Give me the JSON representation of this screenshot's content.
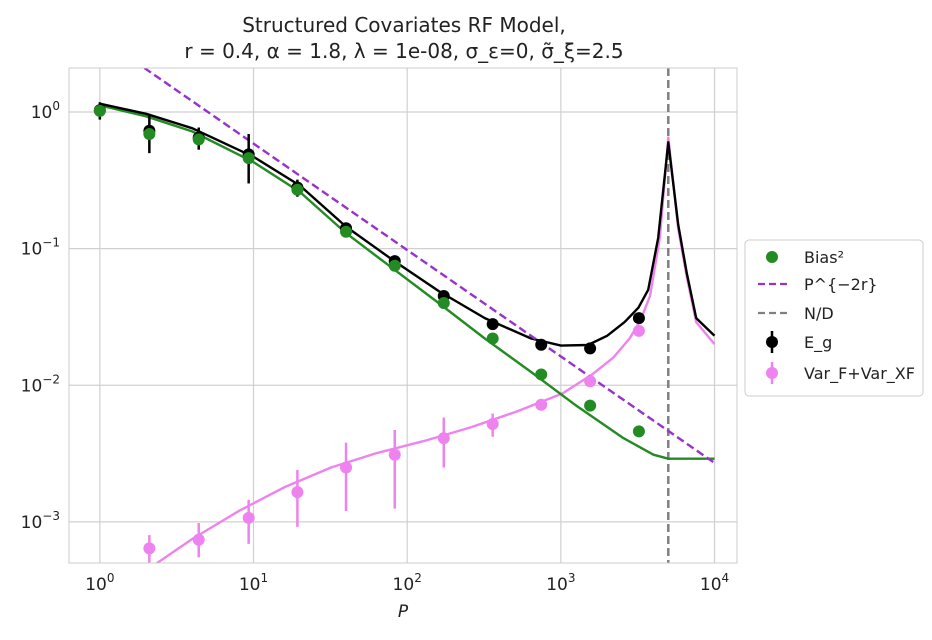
{
  "chart_data": {
    "type": "scatter",
    "title_line1": "Structured Covariates RF Model,",
    "title_line2": "r = 0.4, α = 1.8, λ = 1e-08, σ_ε=0, σ̃_ξ=2.5",
    "xlabel": "P",
    "ylabel": "",
    "xscale": "log",
    "yscale": "log",
    "xlim": [
      0.63,
      14000
    ],
    "ylim": [
      0.0005,
      2.1
    ],
    "x_ticks": [
      {
        "value": 1,
        "base": "10",
        "exp": "0"
      },
      {
        "value": 10,
        "base": "10",
        "exp": "1"
      },
      {
        "value": 100,
        "base": "10",
        "exp": "2"
      },
      {
        "value": 1000,
        "base": "10",
        "exp": "3"
      },
      {
        "value": 10000,
        "base": "10",
        "exp": "4"
      }
    ],
    "y_ticks": [
      {
        "value": 1,
        "base": "10",
        "exp": "0"
      },
      {
        "value": 0.1,
        "base": "10",
        "exp": "−1"
      },
      {
        "value": 0.01,
        "base": "10",
        "exp": "−2"
      },
      {
        "value": 0.001,
        "base": "10",
        "exp": "−3"
      }
    ],
    "grid": true,
    "legend_position": "right-outside",
    "legend": {
      "bias": "Bias²",
      "power": "P^{−2r}",
      "nd": "N/D",
      "eg": "E_g",
      "var": "Var_F+Var_XF"
    },
    "colors": {
      "bias": "#228b22",
      "power": "#9932cc",
      "nd": "#808080",
      "eg": "#000000",
      "var": "#ee82ee",
      "grid": "#d0d0d0",
      "spine": "#cccccc"
    },
    "nd_line_x": 5000,
    "power_law_line": {
      "x": [
        1.95,
        10000
      ],
      "y": [
        2.1,
        0.0027
      ]
    },
    "bias_curve": {
      "x": [
        1,
        2,
        4,
        10,
        20,
        40,
        80,
        160,
        320,
        640,
        1280,
        2560,
        4000,
        5000,
        7000,
        10000
      ],
      "y": [
        1.12,
        0.93,
        0.72,
        0.43,
        0.26,
        0.13,
        0.072,
        0.04,
        0.022,
        0.0125,
        0.007,
        0.0041,
        0.0031,
        0.0029,
        0.0029,
        0.0029
      ]
    },
    "eg_curve": {
      "x": [
        1,
        2,
        4,
        10,
        20,
        40,
        80,
        160,
        320,
        640,
        1000,
        1500,
        2000,
        2600,
        3200,
        3700,
        4300,
        5000,
        5800,
        6600,
        7600,
        10000
      ],
      "y": [
        1.15,
        0.97,
        0.76,
        0.47,
        0.29,
        0.145,
        0.083,
        0.049,
        0.031,
        0.022,
        0.0195,
        0.0197,
        0.023,
        0.029,
        0.037,
        0.05,
        0.12,
        0.6,
        0.15,
        0.066,
        0.031,
        0.023
      ]
    },
    "var_curve": {
      "x": [
        2.3,
        4,
        8,
        16,
        32,
        64,
        128,
        256,
        512,
        1024,
        1600,
        2200,
        2800,
        3300,
        3800,
        4400,
        5000,
        5800,
        6600,
        7600,
        10000
      ],
      "y": [
        0.00049,
        0.00075,
        0.0012,
        0.0018,
        0.0025,
        0.0032,
        0.0039,
        0.0049,
        0.0064,
        0.0087,
        0.012,
        0.016,
        0.022,
        0.03,
        0.045,
        0.12,
        0.65,
        0.14,
        0.062,
        0.029,
        0.02
      ]
    },
    "bias_points": {
      "x": [
        1,
        2.1,
        4.4,
        9.3,
        19.3,
        40,
        83,
        173,
        360,
        745,
        1550,
        3220
      ],
      "y": [
        1.02,
        0.69,
        0.63,
        0.46,
        0.27,
        0.133,
        0.075,
        0.04,
        0.022,
        0.012,
        0.0071,
        0.0046
      ]
    },
    "eg_points": {
      "x": [
        1,
        2.1,
        4.4,
        9.3,
        19.3,
        40,
        83,
        173,
        360,
        745,
        1550,
        3220
      ],
      "y": [
        1.03,
        0.73,
        0.65,
        0.49,
        0.28,
        0.141,
        0.081,
        0.045,
        0.028,
        0.0198,
        0.0186,
        0.031
      ],
      "err_low": [
        0.88,
        0.5,
        0.53,
        0.3,
        0.24,
        0.13,
        0.076,
        0.042,
        0.026,
        0.0186,
        0.0177,
        0.029
      ],
      "err_high": [
        1.18,
        0.97,
        0.77,
        0.69,
        0.32,
        0.153,
        0.086,
        0.048,
        0.03,
        0.021,
        0.0196,
        0.033
      ]
    },
    "var_points": {
      "x": [
        2.1,
        4.4,
        9.3,
        19.3,
        40,
        83,
        173,
        360,
        745,
        1550,
        3220
      ],
      "y": [
        0.00064,
        0.00074,
        0.00107,
        0.00165,
        0.0025,
        0.0031,
        0.0041,
        0.0052,
        0.0072,
        0.0107,
        0.025
      ],
      "err_low": [
        0.00049,
        0.00055,
        0.00069,
        0.00092,
        0.0012,
        0.00125,
        0.0025,
        0.0042,
        0.0066,
        0.0101,
        0.0238
      ],
      "err_high": [
        0.0008,
        0.00098,
        0.00145,
        0.0024,
        0.0038,
        0.0047,
        0.0058,
        0.0062,
        0.0078,
        0.0113,
        0.0262
      ]
    }
  }
}
